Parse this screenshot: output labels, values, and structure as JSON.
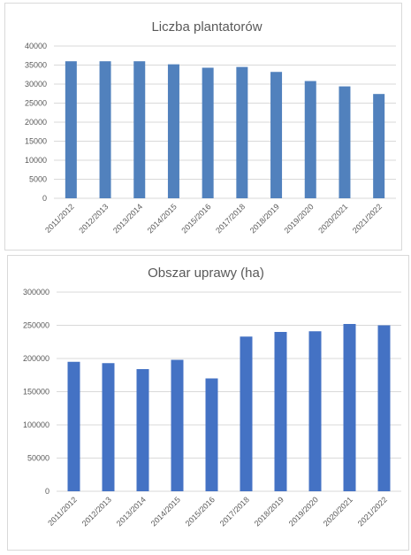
{
  "chart_data": [
    {
      "type": "bar",
      "title": "Liczba plantatorów",
      "categories": [
        "2011/2012",
        "2012/2013",
        "2013/2014",
        "2014/2015",
        "2015/2016",
        "2017/2018",
        "2018/2019",
        "2019/2020",
        "2020/2021",
        "2021/2022"
      ],
      "values": [
        36000,
        36000,
        36000,
        35200,
        34300,
        34500,
        33200,
        30800,
        29400,
        27400
      ],
      "ylim": [
        0,
        40000
      ],
      "yticks": [
        0,
        5000,
        10000,
        15000,
        20000,
        25000,
        30000,
        35000,
        40000
      ],
      "grid": true,
      "color": "#5181bd"
    },
    {
      "type": "bar",
      "title": "Obszar uprawy (ha)",
      "categories": [
        "2011/2012",
        "2012/2013",
        "2013/2014",
        "2014/2015",
        "2015/2016",
        "2017/2018",
        "2018/2019",
        "2019/2020",
        "2020/2021",
        "2021/2022"
      ],
      "values": [
        195000,
        193000,
        184000,
        198000,
        170000,
        233000,
        240000,
        241000,
        252000,
        250000
      ],
      "ylim": [
        0,
        300000
      ],
      "yticks": [
        0,
        50000,
        100000,
        150000,
        200000,
        250000,
        300000
      ],
      "grid": true,
      "color": "#4472c4"
    }
  ]
}
